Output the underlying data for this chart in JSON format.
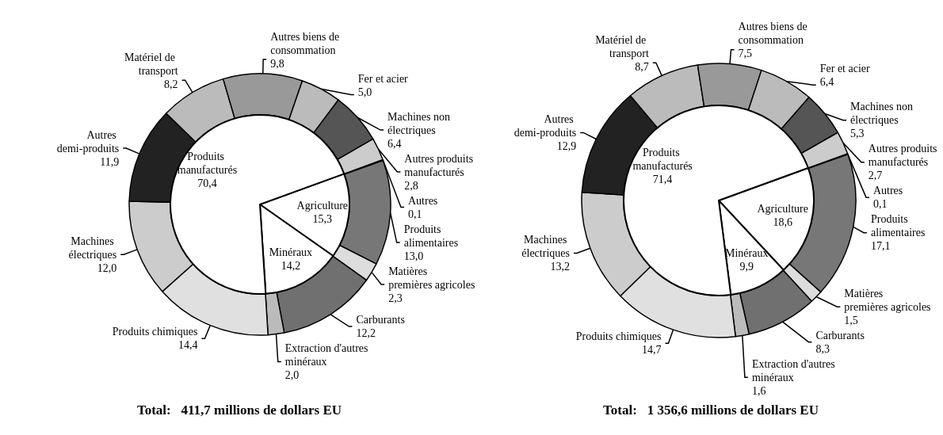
{
  "chart_data": [
    {
      "type": "donut",
      "annotations": [
        "Total:   411,7 millions de dollars EU"
      ],
      "categories": [
        "Autres",
        "Produits alimentaires",
        "Matières premières agricoles",
        "Carburants",
        "Extraction d'autres minéraux",
        "Produits chimiques",
        "Machines électriques",
        "Autres demi-produits",
        "Matériel de transport",
        "Autres biens de consommation",
        "Fer et acier",
        "Machines non électriques",
        "Autres produits manufacturés"
      ],
      "values": [
        0.1,
        13.0,
        2.3,
        12.2,
        2.0,
        14.4,
        12.0,
        11.9,
        8.2,
        9.8,
        5.0,
        6.4,
        2.8
      ],
      "value_labels": [
        "0,1",
        "13,0",
        "2,3",
        "12,2",
        "2,0",
        "14,4",
        "12,0",
        "11,9",
        "8,2",
        "9,8",
        "5,0",
        "6,4",
        "2,8"
      ],
      "colors": [
        "#ffffff",
        "#777777",
        "#dddddd",
        "#707070",
        "#bbbbbb",
        "#e0e0e0",
        "#cccccc",
        "#222222",
        "#bbbbbb",
        "#999999",
        "#bbbbbb",
        "#555555",
        "#cccccc"
      ]
    },
    {
      "type": "pie",
      "categories": [
        "Agriculture",
        "Minéraux",
        "Produits manufacturés"
      ],
      "values": [
        15.3,
        14.2,
        70.4
      ],
      "value_labels": [
        "15,3",
        "14,2",
        "70,4"
      ],
      "colors": [
        "#ffffff",
        "#ffffff",
        "#ffffff"
      ]
    },
    {
      "type": "donut",
      "annotations": [
        "Total:   1 356,6 millions de dollars EU"
      ],
      "categories": [
        "Autres",
        "Produits alimentaires",
        "Matières premières agricoles",
        "Carburants",
        "Extraction d'autres minéraux",
        "Produits chimiques",
        "Machines électriques",
        "Autres demi-produits",
        "Matériel de transport",
        "Autres biens de consommation",
        "Fer et acier",
        "Machines non électriques",
        "Autres produits manufacturés"
      ],
      "values": [
        0.1,
        17.1,
        1.5,
        8.3,
        1.6,
        14.7,
        13.2,
        12.9,
        8.7,
        7.5,
        6.4,
        5.3,
        2.7
      ],
      "value_labels": [
        "0,1",
        "17,1",
        "1,5",
        "8,3",
        "1,6",
        "14,7",
        "13,2",
        "12,9",
        "8,7",
        "7,5",
        "6,4",
        "5,3",
        "2,7"
      ],
      "colors": [
        "#ffffff",
        "#777777",
        "#dddddd",
        "#707070",
        "#bbbbbb",
        "#e0e0e0",
        "#cccccc",
        "#222222",
        "#bbbbbb",
        "#999999",
        "#bbbbbb",
        "#555555",
        "#cccccc"
      ]
    },
    {
      "type": "pie",
      "categories": [
        "Agriculture",
        "Minéraux",
        "Produits manufacturés"
      ],
      "values": [
        18.6,
        9.9,
        71.4
      ],
      "value_labels": [
        "18,6",
        "9,9",
        "71,4"
      ],
      "colors": [
        "#ffffff",
        "#ffffff",
        "#ffffff"
      ]
    }
  ]
}
